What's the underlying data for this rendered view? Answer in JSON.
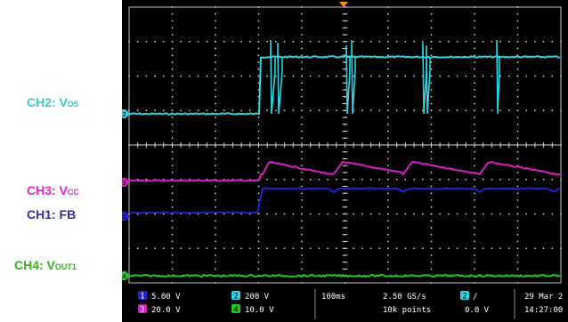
{
  "labels": {
    "ch2": {
      "main": "CH2: V",
      "sub": "DS",
      "color": "#3cc7d6"
    },
    "ch3": {
      "main": "CH3: V",
      "sub": "CC",
      "color": "#e629c9"
    },
    "ch1": {
      "main": "CH1: FB",
      "sub": "",
      "color": "#2c2fa8"
    },
    "ch4": {
      "main": "CH4: V",
      "sub": "OUT1",
      "color": "#33b21e"
    }
  },
  "colors": {
    "ch1": "#2323c8",
    "ch2": "#2ad4e0",
    "ch3": "#d81ec8",
    "ch4": "#1ec81e",
    "grid": "#cfcfcf",
    "trigger": "#ff8c1a"
  },
  "markers": {
    "ch1": "1",
    "ch2": "2",
    "ch3": "3",
    "ch4": "4"
  },
  "status": {
    "ch1_scale": "5.00 V",
    "ch2_scale": "200 V",
    "ch3_scale": "20.0 V",
    "ch4_scale": "10.0 V",
    "timebase": "100ms",
    "sample_rate": "2.50 GS/s",
    "record_length": "10k points",
    "trig_channel": "2",
    "trig_level": "0.0 V",
    "date": "29 Mar 2",
    "time": "14:27:00"
  }
}
